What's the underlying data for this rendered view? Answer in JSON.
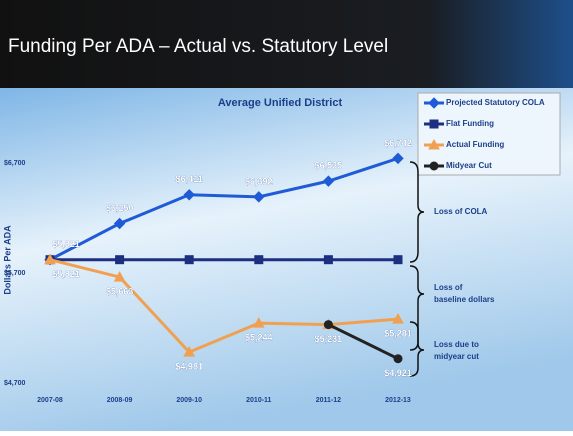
{
  "header": {
    "title": "Funding Per ADA – Actual vs. Statutory Level"
  },
  "chart_data": {
    "type": "line",
    "title": "Average Unified District",
    "ylabel": "Dollars Per ADA",
    "categories": [
      "2007-08",
      "2008-09",
      "2009-10",
      "2010-11",
      "2011-12",
      "2012-13"
    ],
    "ylim": [
      4700,
      6700
    ],
    "yticks": [
      {
        "value": 4700,
        "label": "$4,700"
      },
      {
        "value": 5700,
        "label": "$5,700"
      },
      {
        "value": 6700,
        "label": "$6,700"
      }
    ],
    "grid": false,
    "legend": "upper right",
    "series": [
      {
        "name": "Projected Statutory COLA",
        "color": "#1f5bd6",
        "marker": "diamond",
        "values": [
          5821,
          6150,
          6411,
          6392,
          6535,
          6742
        ],
        "value_labels": [
          "$5,821",
          "$6,150",
          "$6,411",
          "$6,392",
          "$6,535",
          "$6,742"
        ]
      },
      {
        "name": "Flat Funding",
        "color": "#1c2f80",
        "marker": "square",
        "values": [
          5821,
          5821,
          5821,
          5821,
          5821,
          5821
        ]
      },
      {
        "name": "Actual Funding",
        "color": "#f0a050",
        "marker": "triangle",
        "values": [
          5821,
          5663,
          4981,
          5244,
          5231,
          5281
        ],
        "value_labels": [
          "$5,821",
          "$5,663",
          "$4,981",
          "$5,244",
          "$5,231",
          "$5,281"
        ]
      },
      {
        "name": "Midyear Cut",
        "color": "#222222",
        "marker": "circle",
        "values": [
          null,
          null,
          null,
          null,
          5231,
          4921
        ],
        "value_labels": [
          null,
          null,
          null,
          null,
          null,
          "$4,921"
        ]
      }
    ],
    "annotations": [
      [
        "Loss of COLA"
      ],
      [
        "Loss of",
        "baseline dollars"
      ],
      [
        "Loss due to",
        "midyear cut"
      ]
    ]
  }
}
